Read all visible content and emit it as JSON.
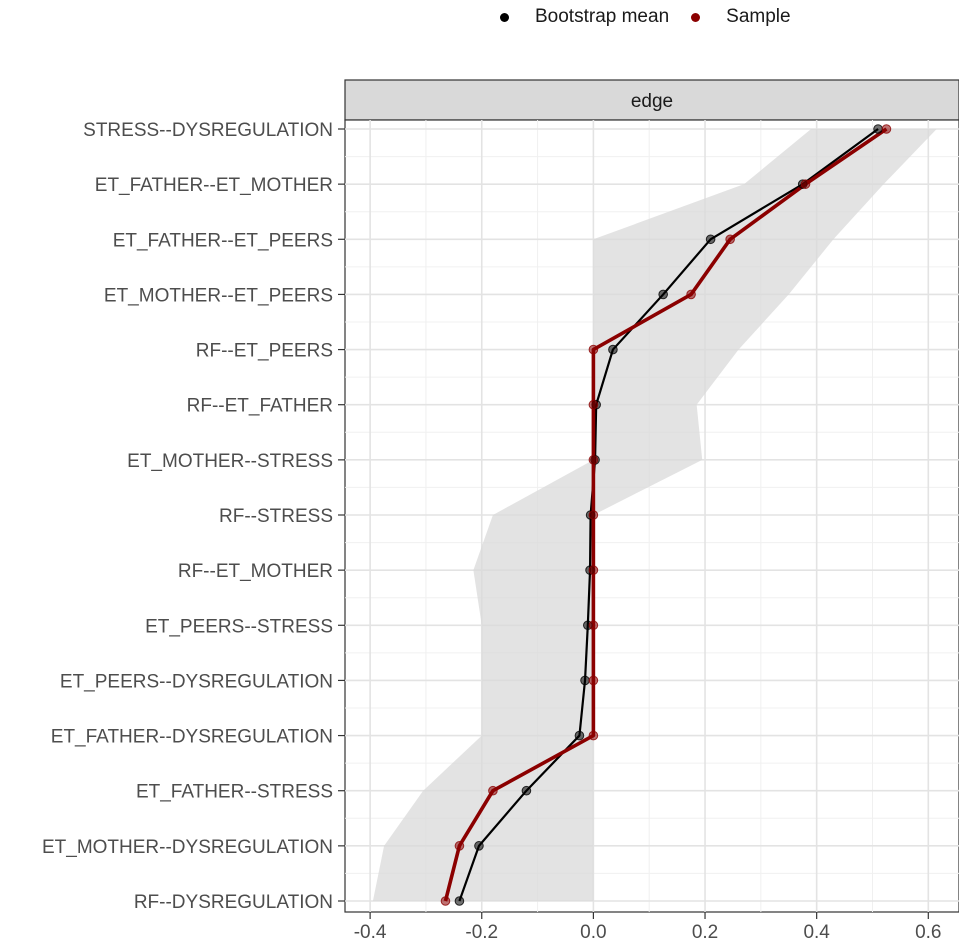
{
  "legend": {
    "items": [
      {
        "label": "Bootstrap mean",
        "color": "#000000"
      },
      {
        "label": "Sample",
        "color": "#8b0000"
      }
    ]
  },
  "chart_data": {
    "type": "line",
    "facet_label": "edge",
    "categories": [
      "STRESS--DYSREGULATION",
      "ET_FATHER--ET_MOTHER",
      "ET_FATHER--ET_PEERS",
      "ET_MOTHER--ET_PEERS",
      "RF--ET_PEERS",
      "RF--ET_FATHER",
      "ET_MOTHER--STRESS",
      "RF--STRESS",
      "RF--ET_MOTHER",
      "ET_PEERS--STRESS",
      "ET_PEERS--DYSREGULATION",
      "ET_FATHER--DYSREGULATION",
      "ET_FATHER--STRESS",
      "ET_MOTHER--DYSREGULATION",
      "RF--DYSREGULATION"
    ],
    "series": [
      {
        "name": "Bootstrap mean",
        "color": "#000000",
        "values": [
          0.51,
          0.375,
          0.21,
          0.125,
          0.035,
          0.005,
          0.003,
          -0.005,
          -0.006,
          -0.01,
          -0.015,
          -0.025,
          -0.12,
          -0.205,
          -0.24
        ]
      },
      {
        "name": "Sample",
        "color": "#8b0000",
        "values": [
          0.525,
          0.38,
          0.245,
          0.175,
          0.0,
          0.0,
          0.0,
          0.0,
          0.0,
          0.0,
          0.0,
          0.0,
          -0.18,
          -0.24,
          -0.265
        ]
      }
    ],
    "ci_band": {
      "lower": [
        0.39,
        0.27,
        0.0,
        0.0,
        0.0,
        0.0,
        0.0,
        -0.18,
        -0.215,
        -0.2,
        -0.2,
        -0.2,
        -0.305,
        -0.375,
        -0.395
      ],
      "upper": [
        0.615,
        0.52,
        0.43,
        0.35,
        0.26,
        0.185,
        0.195,
        0.0,
        0.0,
        0.0,
        0.0,
        0.0,
        0.0,
        0.0,
        0.0
      ],
      "color": "#d9d9d9"
    },
    "x_ticks": [
      -0.4,
      -0.2,
      0.0,
      0.2,
      0.4,
      0.6
    ],
    "x_tick_labels": [
      "-0.4",
      "-0.2",
      "0.0",
      "0.2",
      "0.4",
      "0.6"
    ],
    "xlim": [
      -0.445,
      0.655
    ],
    "grid": true,
    "legend_position": "top"
  }
}
